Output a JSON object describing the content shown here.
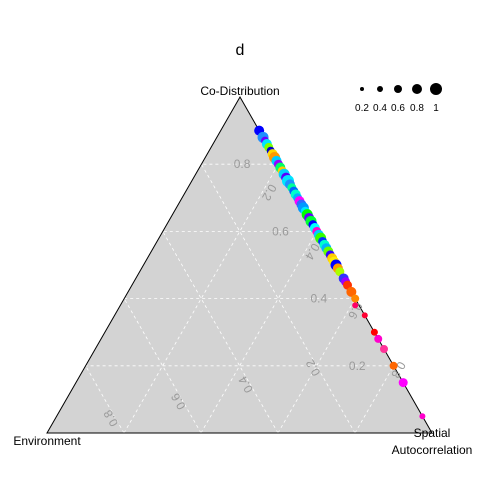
{
  "chart_data": {
    "type": "scatter",
    "title": "d",
    "vertices": {
      "top": "Co-Distribution",
      "left": "Environment",
      "right_line1": "Spatial",
      "right_line2": "Autocorrelation"
    },
    "codist_ticks": [
      "0.2",
      "0.4",
      "0.6",
      "0.8"
    ],
    "env_ticks": [
      "0.2",
      "0.4",
      "0.6",
      "0.8"
    ],
    "spatial_ticks": [
      "0.2",
      "0.4",
      "0.6",
      "0.8"
    ],
    "grid": true,
    "legend": {
      "placement": "top-right",
      "entries": [
        {
          "label": "0.2",
          "value": 0.2
        },
        {
          "label": "0.4",
          "value": 0.4
        },
        {
          "label": "0.6",
          "value": 0.6
        },
        {
          "label": "0.8",
          "value": 0.8
        },
        {
          "label": "1",
          "value": 1.0
        }
      ]
    },
    "background_color": "#d3d3d3",
    "points": [
      {
        "codist": 0.9,
        "env": 0.0,
        "size": 0.8,
        "color": "#0000ff"
      },
      {
        "codist": 0.88,
        "env": 0.0,
        "size": 0.9,
        "color": "#1e90ff"
      },
      {
        "codist": 0.87,
        "env": 0.0,
        "size": 0.6,
        "color": "#6a00ff"
      },
      {
        "codist": 0.86,
        "env": 0.0,
        "size": 0.8,
        "color": "#00e5ff"
      },
      {
        "codist": 0.85,
        "env": 0.0,
        "size": 0.7,
        "color": "#80ff00"
      },
      {
        "codist": 0.84,
        "env": 0.0,
        "size": 0.6,
        "color": "#0000cc"
      },
      {
        "codist": 0.83,
        "env": 0.0,
        "size": 0.8,
        "color": "#ffd700"
      },
      {
        "codist": 0.82,
        "env": 0.0,
        "size": 0.9,
        "color": "#ff9900"
      },
      {
        "codist": 0.81,
        "env": 0.0,
        "size": 0.8,
        "color": "#00ccff"
      },
      {
        "codist": 0.8,
        "env": 0.0,
        "size": 0.7,
        "color": "#9900ff"
      },
      {
        "codist": 0.79,
        "env": 0.0,
        "size": 0.8,
        "color": "#00ff66"
      },
      {
        "codist": 0.78,
        "env": 0.0,
        "size": 0.7,
        "color": "#ffcc00"
      },
      {
        "codist": 0.77,
        "env": 0.0,
        "size": 0.9,
        "color": "#00d4ff"
      },
      {
        "codist": 0.76,
        "env": 0.0,
        "size": 0.8,
        "color": "#5a00ff"
      },
      {
        "codist": 0.75,
        "env": 0.0,
        "size": 1.0,
        "color": "#00e5ff"
      },
      {
        "codist": 0.74,
        "env": 0.0,
        "size": 0.8,
        "color": "#1e90ff"
      },
      {
        "codist": 0.73,
        "env": 0.0,
        "size": 0.7,
        "color": "#00ff99"
      },
      {
        "codist": 0.72,
        "env": 0.0,
        "size": 0.7,
        "color": "#0066ff"
      },
      {
        "codist": 0.71,
        "env": 0.0,
        "size": 0.8,
        "color": "#00ffcc"
      },
      {
        "codist": 0.7,
        "env": 0.0,
        "size": 0.7,
        "color": "#00b3ff"
      },
      {
        "codist": 0.69,
        "env": 0.0,
        "size": 0.8,
        "color": "#ff00ff"
      },
      {
        "codist": 0.68,
        "env": 0.0,
        "size": 0.8,
        "color": "#3366ff"
      },
      {
        "codist": 0.67,
        "env": 0.0,
        "size": 0.9,
        "color": "#0099ff"
      },
      {
        "codist": 0.66,
        "env": 0.0,
        "size": 0.7,
        "color": "#00e5ff"
      },
      {
        "codist": 0.65,
        "env": 0.0,
        "size": 0.9,
        "color": "#00ff00"
      },
      {
        "codist": 0.64,
        "env": 0.0,
        "size": 0.8,
        "color": "#6600ff"
      },
      {
        "codist": 0.63,
        "env": 0.0,
        "size": 0.9,
        "color": "#00ff33"
      },
      {
        "codist": 0.62,
        "env": 0.0,
        "size": 0.7,
        "color": "#0000ff"
      },
      {
        "codist": 0.61,
        "env": 0.0,
        "size": 0.8,
        "color": "#00ffff"
      },
      {
        "codist": 0.6,
        "env": 0.0,
        "size": 0.7,
        "color": "#ff00cc"
      },
      {
        "codist": 0.59,
        "env": 0.0,
        "size": 0.8,
        "color": "#00ccff"
      },
      {
        "codist": 0.58,
        "env": 0.0,
        "size": 0.9,
        "color": "#33ff00"
      },
      {
        "codist": 0.57,
        "env": 0.0,
        "size": 0.7,
        "color": "#0033ff"
      },
      {
        "codist": 0.56,
        "env": 0.0,
        "size": 0.8,
        "color": "#00ffcc"
      },
      {
        "codist": 0.55,
        "env": 0.0,
        "size": 0.8,
        "color": "#00b3ff"
      },
      {
        "codist": 0.54,
        "env": 0.0,
        "size": 0.8,
        "color": "#66ff00"
      },
      {
        "codist": 0.53,
        "env": 0.0,
        "size": 0.7,
        "color": "#3300ff"
      },
      {
        "codist": 0.52,
        "env": 0.0,
        "size": 0.8,
        "color": "#ffcc00"
      },
      {
        "codist": 0.51,
        "env": 0.0,
        "size": 0.8,
        "color": "#ffee00"
      },
      {
        "codist": 0.5,
        "env": 0.0,
        "size": 0.9,
        "color": "#0000ff"
      },
      {
        "codist": 0.49,
        "env": 0.0,
        "size": 0.8,
        "color": "#ff9900"
      },
      {
        "codist": 0.48,
        "env": 0.0,
        "size": 0.7,
        "color": "#aaff00"
      },
      {
        "codist": 0.46,
        "env": 0.0,
        "size": 0.8,
        "color": "#3333ff"
      },
      {
        "codist": 0.45,
        "env": 0.0,
        "size": 0.7,
        "color": "#9900ff"
      },
      {
        "codist": 0.44,
        "env": 0.0,
        "size": 0.7,
        "color": "#ff3300"
      },
      {
        "codist": 0.42,
        "env": 0.0,
        "size": 0.8,
        "color": "#ff6600"
      },
      {
        "codist": 0.4,
        "env": 0.0,
        "size": 0.6,
        "color": "#ff8800"
      },
      {
        "codist": 0.38,
        "env": 0.01,
        "size": 0.4,
        "color": "#ff0066"
      },
      {
        "codist": 0.35,
        "env": 0.0,
        "size": 0.4,
        "color": "#ff0033"
      },
      {
        "codist": 0.3,
        "env": 0.0,
        "size": 0.5,
        "color": "#ff0000"
      },
      {
        "codist": 0.28,
        "env": 0.0,
        "size": 0.6,
        "color": "#ff00cc"
      },
      {
        "codist": 0.25,
        "env": 0.0,
        "size": 0.6,
        "color": "#ff3399"
      },
      {
        "codist": 0.2,
        "env": 0.0,
        "size": 0.6,
        "color": "#ff6600"
      },
      {
        "codist": 0.15,
        "env": 0.0,
        "size": 0.7,
        "color": "#ff00ff"
      },
      {
        "codist": 0.05,
        "env": 0.0,
        "size": 0.4,
        "color": "#ff00cc"
      }
    ]
  }
}
